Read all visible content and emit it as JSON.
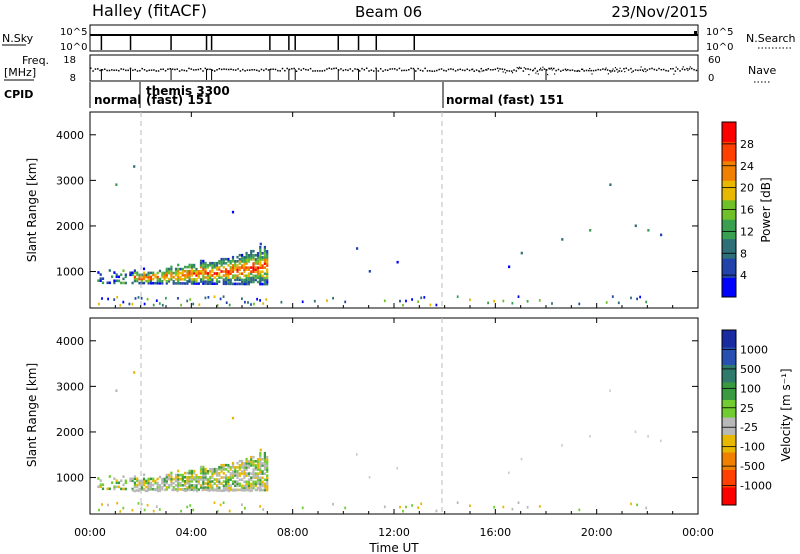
{
  "header": {
    "radar": "Halley (fitACF)",
    "beam": "Beam 06",
    "date": "23/Nov/2015"
  },
  "top_panels": {
    "nsky_label": "N.Sky",
    "nsky_ticks": [
      "10^5",
      "10^0"
    ],
    "nsearch_label": "N.Search",
    "nsearch_ticks": [
      "10^5",
      "10^0"
    ],
    "freq_label_line1": "Freq.",
    "freq_label_line2": "[MHz]",
    "freq_ticks": [
      "18",
      "8"
    ],
    "nave_label": "Nave",
    "nave_ticks": [
      "60",
      "0"
    ],
    "cpid_label": "CPID"
  },
  "cpid_segments": [
    {
      "label": "normal",
      "start_hour": 0
    },
    {
      "label": "themis 3300",
      "start_hour": 1.75
    },
    {
      "label": "(fast) 151",
      "start_hour": 1.75
    },
    {
      "label": "normal (fast) 151",
      "start_hour": 14
    }
  ],
  "colors": {
    "power_scale": [
      "#0000ff",
      "#2244aa",
      "#2e6f78",
      "#38a050",
      "#70c02a",
      "#e8b800",
      "#f08000",
      "#ff4000",
      "#ff0000"
    ],
    "velocity_scale": [
      "#1a2aa0",
      "#2850b0",
      "#2f7a6a",
      "#3a9a40",
      "#70cc30",
      "#b8b8b8",
      "#e8b800",
      "#f08000",
      "#ff4000",
      "#ff0000"
    ]
  },
  "chart_data": [
    {
      "type": "heatmap",
      "name": "power",
      "x_range_hours": [
        0,
        24
      ],
      "y_range_km": [
        200,
        4500
      ],
      "ylabel": "Slant Range [km]",
      "yticks": [
        1000,
        2000,
        3000,
        4000
      ],
      "colorbar_label": "Power [dB]",
      "colorbar_ticks": [
        4,
        8,
        12,
        16,
        20,
        24,
        28
      ],
      "colorbar_range": [
        0,
        32
      ]
    },
    {
      "type": "heatmap",
      "name": "velocity",
      "x_range_hours": [
        0,
        24
      ],
      "y_range_km": [
        200,
        4500
      ],
      "ylabel": "Slant Range [km]",
      "yticks": [
        1000,
        2000,
        3000,
        4000
      ],
      "colorbar_label": "Velocity [m s⁻¹]",
      "colorbar_ticks": [
        "1000",
        "500",
        "100",
        "25",
        "-25",
        "-100",
        "-500",
        "-1000"
      ]
    }
  ],
  "xaxis": {
    "ticks": [
      "00:00",
      "04:00",
      "08:00",
      "12:00",
      "16:00",
      "20:00",
      "00:00"
    ],
    "label": "Time UT"
  }
}
